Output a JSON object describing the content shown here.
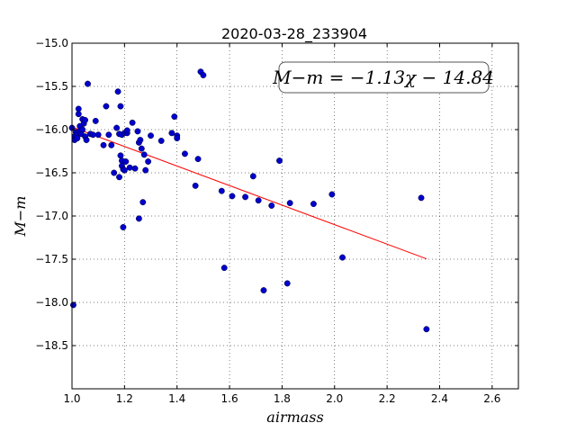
{
  "chart_data": {
    "type": "scatter",
    "title": "2020-03-28_233904",
    "xlabel": "airmass",
    "ylabel": "M−m",
    "xlim": [
      1.0,
      2.7
    ],
    "ylim": [
      -15.0,
      -19.0
    ],
    "x_ticks": [
      1.0,
      1.2,
      1.4,
      1.6,
      1.8,
      2.0,
      2.2,
      2.4,
      2.6
    ],
    "x_tick_labels": [
      "1.0",
      "1.2",
      "1.4",
      "1.6",
      "1.8",
      "2.0",
      "2.2",
      "2.4",
      "2.6"
    ],
    "y_ticks": [
      -15.0,
      -15.5,
      -16.0,
      -16.5,
      -17.0,
      -17.5,
      -18.0,
      -18.5
    ],
    "y_tick_labels": [
      "−15.0",
      "−15.5",
      "−16.0",
      "−16.5",
      "−17.0",
      "−17.5",
      "−18.0",
      "−18.5"
    ],
    "grid": true,
    "annotation": "M−m = −1.13χ − 14.84",
    "annotation_position": "top-right",
    "series": [
      {
        "marker_color": "#0000cc",
        "points": [
          [
            1.005,
            -18.03
          ],
          [
            1.0,
            -15.98
          ],
          [
            1.01,
            -16.08
          ],
          [
            1.01,
            -16.12
          ],
          [
            1.015,
            -16.03
          ],
          [
            1.02,
            -16.05
          ],
          [
            1.02,
            -16.1
          ],
          [
            1.025,
            -15.82
          ],
          [
            1.025,
            -15.76
          ],
          [
            1.03,
            -15.96
          ],
          [
            1.03,
            -16.02
          ],
          [
            1.035,
            -16.05
          ],
          [
            1.04,
            -15.88
          ],
          [
            1.04,
            -16.0
          ],
          [
            1.045,
            -15.93
          ],
          [
            1.05,
            -16.08
          ],
          [
            1.05,
            -15.89
          ],
          [
            1.055,
            -16.12
          ],
          [
            1.06,
            -15.47
          ],
          [
            1.07,
            -16.05
          ],
          [
            1.08,
            -16.06
          ],
          [
            1.09,
            -15.9
          ],
          [
            1.1,
            -16.06
          ],
          [
            1.12,
            -16.18
          ],
          [
            1.13,
            -15.73
          ],
          [
            1.14,
            -16.06
          ],
          [
            1.15,
            -16.18
          ],
          [
            1.16,
            -16.5
          ],
          [
            1.17,
            -15.98
          ],
          [
            1.175,
            -15.56
          ],
          [
            1.18,
            -16.05
          ],
          [
            1.18,
            -16.55
          ],
          [
            1.185,
            -15.73
          ],
          [
            1.185,
            -16.3
          ],
          [
            1.19,
            -16.06
          ],
          [
            1.19,
            -16.36
          ],
          [
            1.19,
            -16.42
          ],
          [
            1.195,
            -16.46
          ],
          [
            1.195,
            -17.13
          ],
          [
            1.2,
            -16.04
          ],
          [
            1.2,
            -16.47
          ],
          [
            1.205,
            -16.37
          ],
          [
            1.21,
            -16.04
          ],
          [
            1.21,
            -16.01
          ],
          [
            1.22,
            -16.44
          ],
          [
            1.23,
            -15.92
          ],
          [
            1.24,
            -16.45
          ],
          [
            1.25,
            -16.02
          ],
          [
            1.255,
            -16.15
          ],
          [
            1.255,
            -17.03
          ],
          [
            1.26,
            -16.12
          ],
          [
            1.265,
            -16.22
          ],
          [
            1.27,
            -16.84
          ],
          [
            1.275,
            -16.29
          ],
          [
            1.28,
            -16.47
          ],
          [
            1.29,
            -16.37
          ],
          [
            1.3,
            -16.07
          ],
          [
            1.34,
            -16.13
          ],
          [
            1.38,
            -16.04
          ],
          [
            1.39,
            -15.85
          ],
          [
            1.4,
            -16.07
          ],
          [
            1.4,
            -16.1
          ],
          [
            1.43,
            -16.28
          ],
          [
            1.47,
            -16.65
          ],
          [
            1.48,
            -16.34
          ],
          [
            1.49,
            -15.33
          ],
          [
            1.5,
            -15.37
          ],
          [
            1.57,
            -16.71
          ],
          [
            1.58,
            -17.6
          ],
          [
            1.61,
            -16.77
          ],
          [
            1.66,
            -16.78
          ],
          [
            1.69,
            -16.54
          ],
          [
            1.71,
            -16.82
          ],
          [
            1.73,
            -17.86
          ],
          [
            1.76,
            -16.88
          ],
          [
            1.79,
            -16.36
          ],
          [
            1.82,
            -17.78
          ],
          [
            1.83,
            -16.85
          ],
          [
            1.92,
            -16.86
          ],
          [
            1.99,
            -16.75
          ],
          [
            2.03,
            -17.48
          ],
          [
            2.33,
            -16.79
          ],
          [
            2.35,
            -18.31
          ]
        ]
      }
    ],
    "fit_line": {
      "slope": -1.13,
      "intercept": -14.84,
      "x_start": 1.0,
      "x_end": 2.35,
      "color": "#ff0000"
    }
  }
}
